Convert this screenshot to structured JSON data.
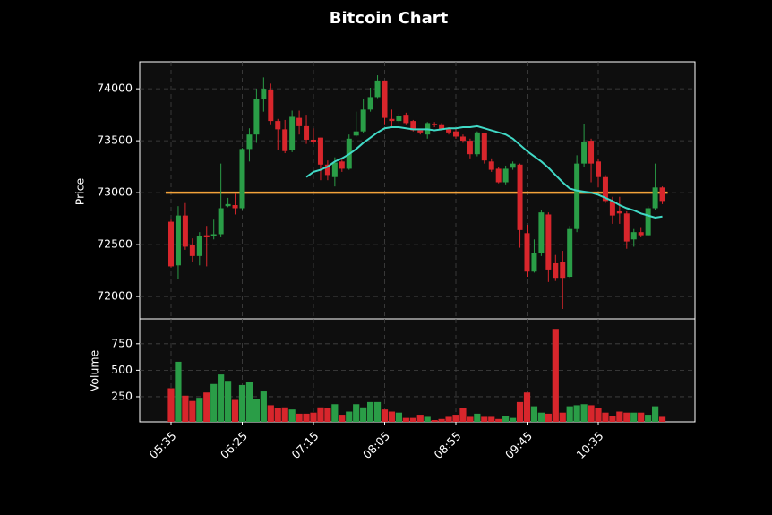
{
  "chart_data": {
    "type": "candlestick",
    "title": "Bitcoin Chart",
    "ylabel": "Price",
    "grid": true,
    "up_color": "#2a9d47",
    "down_color": "#d8262c",
    "categories": [
      "05:35",
      null,
      null,
      null,
      null,
      null,
      null,
      null,
      null,
      null,
      "06:25",
      null,
      null,
      null,
      null,
      null,
      null,
      null,
      null,
      null,
      "07:15",
      null,
      null,
      null,
      null,
      null,
      null,
      null,
      null,
      null,
      "08:05",
      null,
      null,
      null,
      null,
      null,
      null,
      null,
      null,
      null,
      "08:55",
      null,
      null,
      null,
      null,
      null,
      null,
      null,
      null,
      null,
      "09:45",
      null,
      null,
      null,
      null,
      null,
      null,
      null,
      null,
      null,
      "10:35",
      null,
      null,
      null,
      null,
      null,
      null,
      null,
      null,
      null
    ],
    "open": [
      72720,
      72300,
      72780,
      72500,
      72390,
      72590,
      72580,
      72600,
      72870,
      72880,
      72850,
      73420,
      73560,
      73900,
      73990,
      73690,
      73610,
      73410,
      73720,
      73640,
      73510,
      73530,
      73270,
      73150,
      73300,
      73230,
      73550,
      73590,
      73800,
      73920,
      74080,
      73710,
      73690,
      73750,
      73690,
      73600,
      73560,
      73660,
      73650,
      73610,
      73590,
      73540,
      73500,
      73370,
      73570,
      73300,
      73230,
      73100,
      73240,
      73270,
      72610,
      72240,
      72420,
      72790,
      72320,
      72330,
      72190,
      72650,
      73280,
      73500,
      73300,
      73150,
      72920,
      72820,
      72800,
      72550,
      72620,
      72590,
      72850,
      73050
    ],
    "high": [
      72740,
      72870,
      72900,
      72560,
      72620,
      72680,
      72740,
      73280,
      72950,
      72990,
      73430,
      73620,
      74000,
      74110,
      74050,
      73710,
      73700,
      73790,
      73790,
      73750,
      73620,
      73530,
      73310,
      73340,
      73320,
      73560,
      73780,
      73900,
      74010,
      74130,
      74080,
      73800,
      73760,
      73770,
      73700,
      73600,
      73680,
      73680,
      73670,
      73630,
      73620,
      73560,
      73520,
      73590,
      73570,
      73330,
      73250,
      73260,
      73300,
      73280,
      72690,
      72550,
      72830,
      72810,
      72400,
      72440,
      72680,
      73360,
      73660,
      73520,
      73330,
      73170,
      72960,
      72960,
      72820,
      72650,
      72660,
      72870,
      73280,
      73060
    ],
    "low": [
      72280,
      72170,
      72450,
      72330,
      72300,
      72290,
      72550,
      72570,
      72860,
      72790,
      72830,
      73300,
      73480,
      73780,
      73650,
      73410,
      73380,
      73390,
      73560,
      73470,
      73470,
      73120,
      73120,
      73060,
      73200,
      73220,
      73540,
      73570,
      73780,
      73910,
      73650,
      73630,
      73670,
      73650,
      73590,
      73560,
      73520,
      73630,
      73600,
      73560,
      73520,
      73480,
      73330,
      73350,
      73280,
      73200,
      73090,
      73080,
      73220,
      72470,
      72190,
      72230,
      72390,
      72140,
      72150,
      71880,
      72180,
      72620,
      73250,
      73100,
      73050,
      72900,
      72700,
      72700,
      72460,
      72480,
      72570,
      72580,
      72830,
      72890
    ],
    "close": [
      72290,
      72780,
      72480,
      72390,
      72580,
      72570,
      72600,
      72850,
      72890,
      72850,
      73420,
      73560,
      73900,
      74000,
      73690,
      73610,
      73400,
      73730,
      73640,
      73510,
      73490,
      73270,
      73170,
      73290,
      73230,
      73520,
      73590,
      73800,
      73920,
      74080,
      73720,
      73690,
      73740,
      73670,
      73600,
      73580,
      73670,
      73650,
      73610,
      73580,
      73540,
      73500,
      73370,
      73580,
      73310,
      73220,
      73100,
      73230,
      73280,
      72640,
      72240,
      72420,
      72810,
      72260,
      72180,
      72180,
      72650,
      73280,
      73490,
      73280,
      73150,
      72920,
      72780,
      72800,
      72530,
      72620,
      72590,
      72850,
      73050,
      72920
    ],
    "ylim": [
      71785,
      74260
    ],
    "yticks": [
      72000,
      72500,
      73000,
      73500,
      74000
    ],
    "hline": {
      "value": 73000,
      "color": "#f2a23a"
    },
    "moving_average": {
      "color": "#40d9c6",
      "values": [
        null,
        null,
        null,
        null,
        null,
        null,
        null,
        null,
        null,
        null,
        null,
        null,
        null,
        null,
        null,
        null,
        null,
        null,
        null,
        73150,
        73200,
        73220,
        73250,
        73300,
        73330,
        73370,
        73420,
        73480,
        73530,
        73580,
        73620,
        73630,
        73630,
        73620,
        73610,
        73610,
        73610,
        73600,
        73610,
        73620,
        73620,
        73630,
        73630,
        73640,
        73620,
        73600,
        73580,
        73560,
        73520,
        73460,
        73400,
        73350,
        73300,
        73240,
        73170,
        73100,
        73040,
        73020,
        73010,
        73000,
        72980,
        72950,
        72920,
        72880,
        72850,
        72830,
        72800,
        72780,
        72760,
        72770
      ]
    },
    "volume": {
      "ylabel": "Volume",
      "values": [
        330,
        580,
        260,
        210,
        240,
        290,
        370,
        460,
        400,
        220,
        360,
        390,
        230,
        300,
        170,
        140,
        150,
        130,
        90,
        90,
        100,
        150,
        140,
        180,
        80,
        110,
        180,
        150,
        200,
        200,
        130,
        110,
        100,
        50,
        50,
        80,
        60,
        30,
        40,
        60,
        80,
        140,
        60,
        90,
        60,
        60,
        40,
        70,
        50,
        200,
        290,
        160,
        100,
        90,
        890,
        100,
        160,
        170,
        180,
        170,
        140,
        100,
        70,
        110,
        100,
        100,
        100,
        80,
        160,
        60
      ],
      "ylim": [
        13,
        985
      ],
      "yticks": [
        250,
        500,
        750
      ]
    }
  }
}
